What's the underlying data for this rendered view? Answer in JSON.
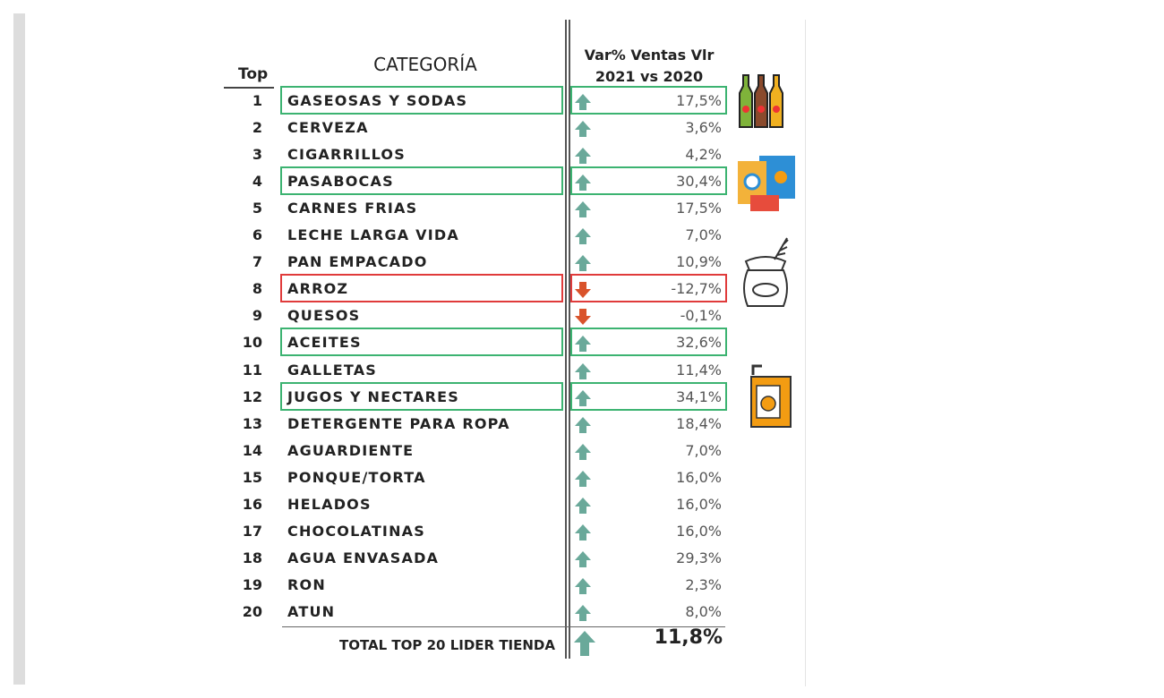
{
  "header": {
    "top": "Top",
    "category": "CATEGORÍA",
    "variation": [
      "Var% Ventas Vlr",
      "2021 vs 2020"
    ]
  },
  "rows": [
    [
      "1",
      "GASEOSAS Y SODAS",
      "17,5%"
    ],
    [
      "2",
      "CERVEZA",
      "3,6%"
    ],
    [
      "3",
      "CIGARRILLOS",
      "4,2%"
    ],
    [
      "4",
      "PASABOCAS",
      "30,4%"
    ],
    [
      "5",
      "CARNES FRIAS",
      "17,5%"
    ],
    [
      "6",
      "LECHE LARGA VIDA",
      "7,0%"
    ],
    [
      "7",
      "PAN EMPACADO",
      "10,9%"
    ],
    [
      "8",
      "ARROZ",
      "-12,7%"
    ],
    [
      "9",
      "QUESOS",
      "-0,1%"
    ],
    [
      "10",
      "ACEITES",
      "32,6%"
    ],
    [
      "11",
      "GALLETAS",
      "11,4%"
    ],
    [
      "12",
      "JUGOS Y NECTARES",
      "34,1%"
    ],
    [
      "13",
      "DETERGENTE PARA ROPA",
      "18,4%"
    ],
    [
      "14",
      "AGUARDIENTE",
      "7,0%"
    ],
    [
      "15",
      "PONQUE/TORTA",
      "16,0%"
    ],
    [
      "16",
      "HELADOS",
      "16,0%"
    ],
    [
      "17",
      "CHOCOLATINAS",
      "16,0%"
    ],
    [
      "18",
      "AGUA ENVASADA",
      "29,3%"
    ],
    [
      "19",
      "RON",
      "2,3%"
    ],
    [
      "20",
      "ATUN",
      "8,0%"
    ]
  ],
  "total": {
    "label": "TOTAL TOP 20 LIDER TIENDA",
    "value": "11,8%"
  }
}
